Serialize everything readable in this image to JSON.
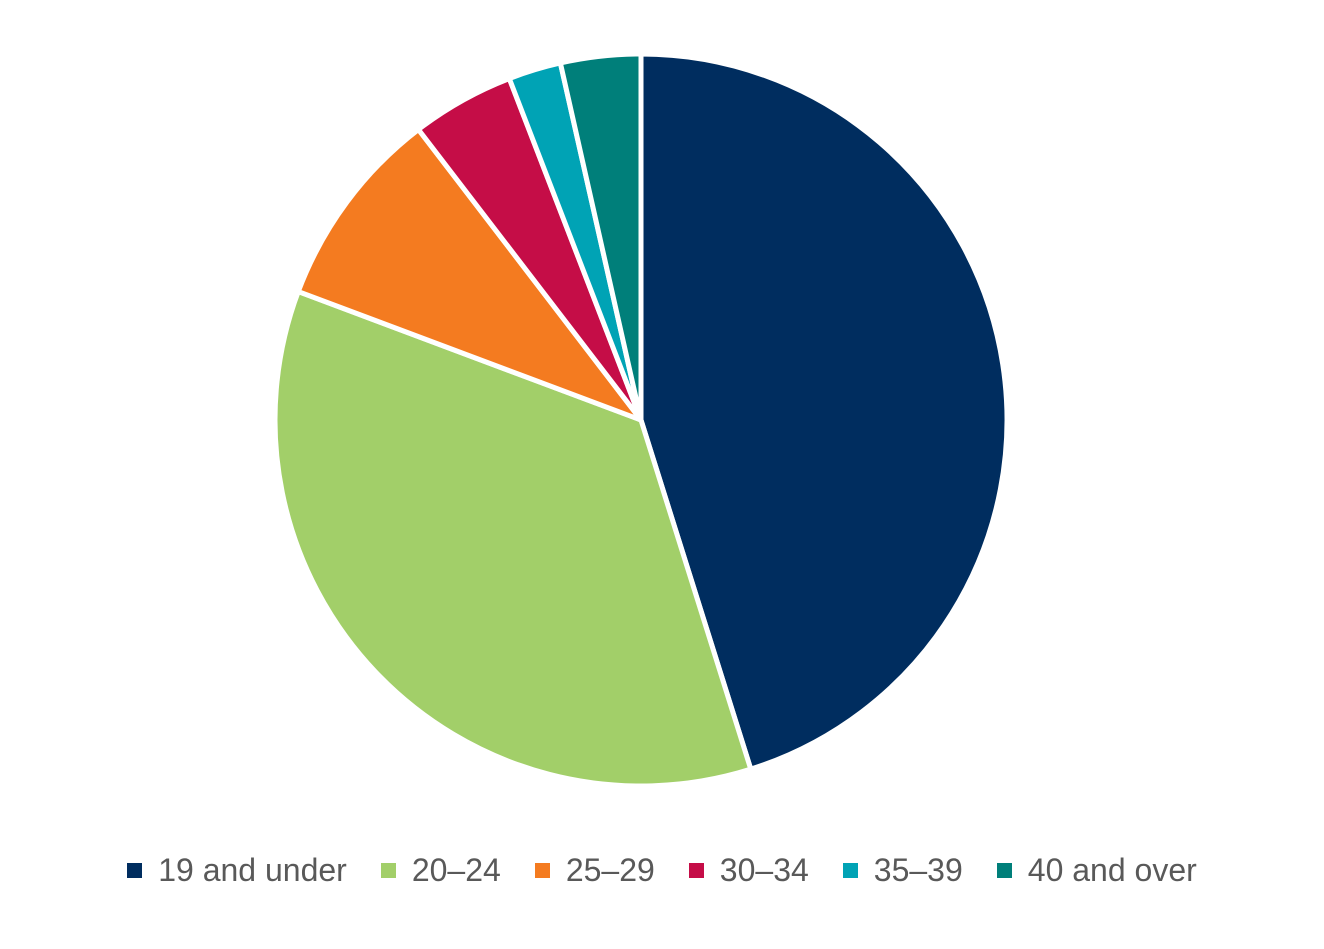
{
  "chart_data": {
    "type": "pie",
    "title": "",
    "categories": [
      "19 and under",
      "20–24",
      "25–29",
      "30–34",
      "35–39",
      "40 and over"
    ],
    "values": [
      44.7,
      35.2,
      8.8,
      4.5,
      2.3,
      3.5
    ],
    "colors": [
      "#002d5f",
      "#a2cf69",
      "#f47b20",
      "#c50d47",
      "#00a3b5",
      "#007f7a"
    ],
    "start_angle_deg": 0,
    "direction": "clockwise",
    "legend": {
      "position": "bottom"
    }
  },
  "legend": {
    "items": [
      {
        "label": "19 and under",
        "color": "#002d5f"
      },
      {
        "label": "20–24",
        "color": "#a2cf69"
      },
      {
        "label": "25–29",
        "color": "#f47b20"
      },
      {
        "label": "30–34",
        "color": "#c50d47"
      },
      {
        "label": "35–39",
        "color": "#00a3b5"
      },
      {
        "label": "40 and over",
        "color": "#007f7a"
      }
    ]
  }
}
